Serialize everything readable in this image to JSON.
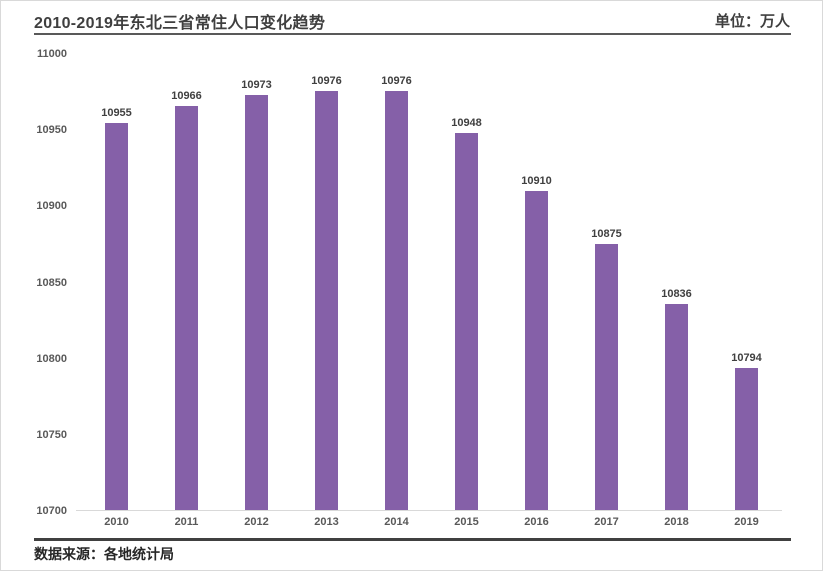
{
  "header": {
    "title": "2010-2019年东北三省常住人口变化趋势",
    "unit_label": "单位：万人"
  },
  "chart_data": {
    "type": "bar",
    "title": "2010-2019年东北三省常住人口变化趋势",
    "unit": "万人",
    "categories": [
      "2010",
      "2011",
      "2012",
      "2013",
      "2014",
      "2015",
      "2016",
      "2017",
      "2018",
      "2019"
    ],
    "values": [
      10955,
      10966,
      10973,
      10976,
      10976,
      10948,
      10910,
      10875,
      10836,
      10794
    ],
    "xlabel": "",
    "ylabel": "",
    "ylim": [
      10700,
      11000
    ],
    "yticks": [
      10700,
      10750,
      10800,
      10850,
      10900,
      10950,
      11000
    ],
    "grid": false,
    "data_labels": true,
    "legend": "none",
    "bar_color": "#8560a8",
    "axis_label_color": "#595959",
    "data_label_color": "#404040"
  },
  "footer": {
    "source": "数据来源：各地统计局"
  }
}
